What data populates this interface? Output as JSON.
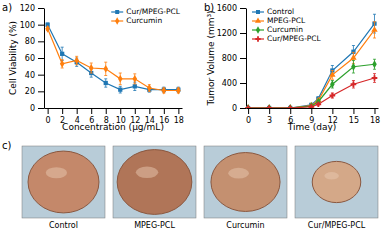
{
  "chart_data": [
    {
      "type": "line",
      "title": "a)",
      "xlabel": "Concentration (μg/mL)",
      "ylabel": "Cell Viability (%)",
      "xlim": [
        -0.5,
        18.5
      ],
      "ylim": [
        0,
        120
      ],
      "xticks": [
        0,
        2,
        4,
        6,
        8,
        10,
        12,
        14,
        16,
        18
      ],
      "yticks": [
        0,
        20,
        40,
        60,
        80,
        100,
        120
      ],
      "grid": false,
      "legend": "upper right",
      "line_style": "solid",
      "series": [
        {
          "name": "Cur/MPEG-PCL",
          "marker": "square",
          "x": [
            0,
            2,
            4,
            6,
            8,
            10,
            12,
            14,
            16,
            18
          ],
          "values": [
            100,
            65,
            55,
            42,
            30,
            22,
            26,
            22,
            22,
            22
          ],
          "yerr": [
            2,
            8,
            5,
            5,
            5,
            4,
            5,
            3,
            3,
            3
          ]
        },
        {
          "name": "Curcumin",
          "marker": "diamond",
          "x": [
            0,
            2,
            4,
            6,
            8,
            10,
            12,
            14,
            16,
            18
          ],
          "values": [
            95,
            53,
            57,
            48,
            47,
            35,
            35,
            24,
            21,
            21
          ],
          "yerr": [
            2,
            5,
            5,
            6,
            8,
            7,
            6,
            4,
            3,
            3
          ]
        }
      ]
    },
    {
      "type": "line",
      "title": "b)",
      "xlabel": "Time (day)",
      "ylabel": "Tumor Volume (mm³)",
      "xlim": [
        -0.3,
        18.5
      ],
      "ylim": [
        0,
        1600
      ],
      "xticks": [
        0,
        3,
        6,
        9,
        12,
        15,
        18
      ],
      "yticks": [
        0,
        400,
        800,
        1200,
        1600
      ],
      "grid": false,
      "legend": "upper left",
      "line_style": "solid",
      "series": [
        {
          "name": "Control",
          "marker": "square",
          "x": [
            0,
            3,
            6,
            9,
            10,
            12,
            15,
            18
          ],
          "values": [
            0,
            0,
            0,
            50,
            150,
            600,
            900,
            1350
          ],
          "yerr": [
            0,
            0,
            0,
            10,
            30,
            80,
            100,
            150
          ]
        },
        {
          "name": "MPEG-PCL",
          "marker": "triangle",
          "x": [
            0,
            3,
            6,
            9,
            10,
            12,
            15,
            18
          ],
          "values": [
            0,
            0,
            0,
            40,
            120,
            530,
            800,
            1250
          ],
          "yerr": [
            0,
            0,
            0,
            10,
            25,
            70,
            90,
            130
          ]
        },
        {
          "name": "Curcumin",
          "marker": "diamond",
          "x": [
            0,
            3,
            6,
            9,
            10,
            12,
            15,
            18
          ],
          "values": [
            0,
            0,
            0,
            30,
            100,
            380,
            660,
            700
          ],
          "yerr": [
            0,
            0,
            0,
            8,
            20,
            60,
            100,
            80
          ]
        },
        {
          "name": "Cur/MPEG-PCL",
          "marker": "plus",
          "x": [
            0,
            3,
            6,
            9,
            10,
            12,
            15,
            18
          ],
          "values": [
            0,
            0,
            0,
            20,
            60,
            200,
            380,
            480
          ],
          "yerr": [
            0,
            0,
            0,
            5,
            15,
            40,
            60,
            70
          ]
        }
      ]
    },
    {
      "type": "illustration",
      "title": "c)",
      "categories": [
        "Control",
        "MPEG-PCL",
        "Curcumin",
        "Cur/MPEG-PCL"
      ],
      "color": "#b8ccd8",
      "colors": [
        "#c4886a",
        "#b07558",
        "#c49070",
        "#d4a888"
      ],
      "rx": [
        0.38,
        0.4,
        0.37,
        0.26
      ],
      "ry": [
        0.42,
        0.44,
        0.4,
        0.28
      ]
    }
  ]
}
